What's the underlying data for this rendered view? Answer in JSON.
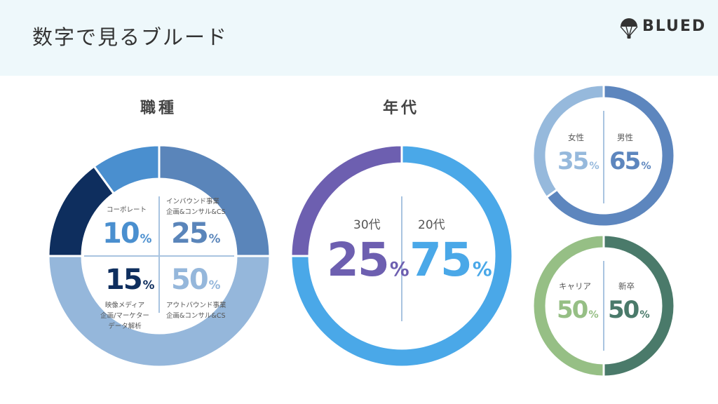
{
  "header": {
    "title": "数字で見るブルード",
    "logo_text": "BLUED"
  },
  "sections": {
    "job": "職種",
    "age": "年代"
  },
  "job": {
    "items": [
      {
        "label": "コーポレート",
        "value": "10",
        "color": "#4a8fcf"
      },
      {
        "label": "インバウンド事業\n企画&コンサル&CS",
        "value": "25",
        "color": "#5a85ba"
      },
      {
        "label": "映像メディア\n企画/マーケター\nデータ解析",
        "value": "15",
        "color": "#0e2e5e"
      },
      {
        "label": "アウトバウンド事業\n企画&コンサル&CS",
        "value": "50",
        "color": "#95b7db"
      }
    ],
    "percent_sign": "%"
  },
  "age": {
    "items": [
      {
        "label": "30代",
        "value": "25",
        "color": "#6d5fb0"
      },
      {
        "label": "20代",
        "value": "75",
        "color": "#4aa8e8"
      }
    ],
    "percent_sign": "%"
  },
  "gender": {
    "items": [
      {
        "label": "女性",
        "value": "35",
        "color": "#96b9dc"
      },
      {
        "label": "男性",
        "value": "65",
        "color": "#5d86be"
      }
    ],
    "percent_sign": "%"
  },
  "hire": {
    "items": [
      {
        "label": "キャリア",
        "value": "50",
        "color": "#96bf85"
      },
      {
        "label": "新卒",
        "value": "50",
        "color": "#4a7a6a"
      }
    ],
    "percent_sign": "%"
  }
}
